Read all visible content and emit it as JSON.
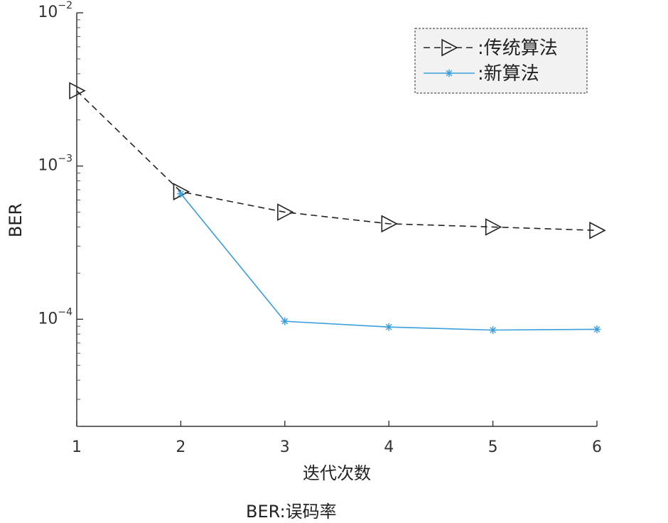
{
  "chart_data": {
    "type": "line",
    "x": [
      1,
      2,
      3,
      4,
      5,
      6
    ],
    "xlim": [
      1,
      6
    ],
    "ylim": [
      2e-05,
      0.01
    ],
    "yscale": "log",
    "xticks": [
      "1",
      "2",
      "3",
      "4",
      "5",
      "6"
    ],
    "yticks": [
      {
        "base": "10",
        "exp": "−2",
        "value": 0.01
      },
      {
        "base": "10",
        "exp": "−3",
        "value": 0.001
      },
      {
        "base": "10",
        "exp": "−4",
        "value": 0.0001
      }
    ],
    "xlabel": "迭代次数",
    "ylabel": "BER",
    "legend_position": "top-right",
    "grid": false,
    "series": [
      {
        "name": "传统算法",
        "legend_label": ":传统算法",
        "values": [
          0.0031,
          0.00068,
          0.0005,
          0.00042,
          0.0004,
          0.00038
        ],
        "color": "#222222",
        "dash": "dashed",
        "marker": "triangle-right"
      },
      {
        "name": "新算法",
        "legend_label": ":新算法",
        "values": [
          0.00066,
          9.7e-05,
          8.9e-05,
          8.5e-05,
          8.6e-05
        ],
        "x": [
          2,
          3,
          4,
          5,
          6
        ],
        "color": "#3a9fdc",
        "dash": "solid",
        "marker": "star"
      }
    ]
  },
  "caption": {
    "abbr": "BER",
    "sep": ":",
    "text": "误码率"
  }
}
